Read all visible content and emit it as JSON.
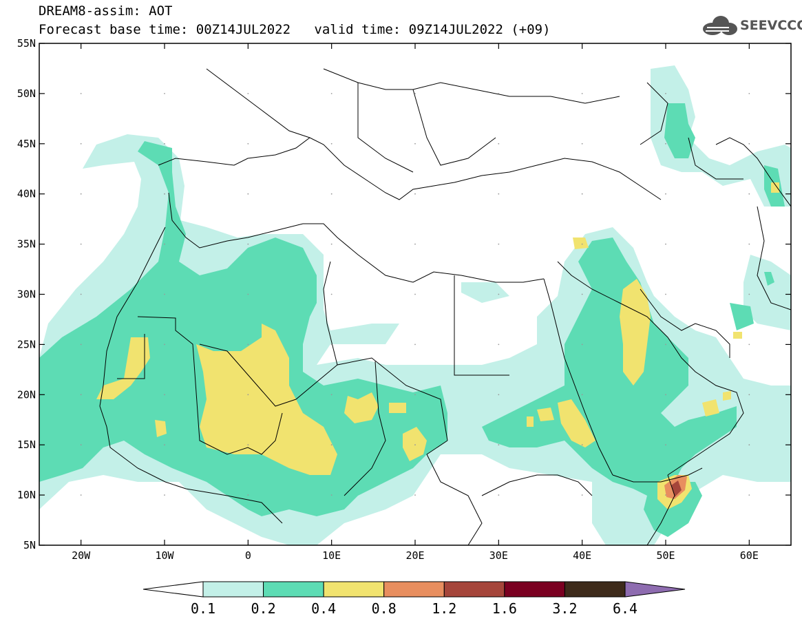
{
  "header": {
    "title_line1": "DREAM8-assim: AOT",
    "base_time_label": "Forecast base time: 00Z14JUL2022",
    "valid_time_label": "valid time: 09Z14JUL2022 (+09)"
  },
  "logo": {
    "text": "SEEVCCC",
    "icon": "cloud-icon"
  },
  "map": {
    "lon_range": [
      -25,
      65
    ],
    "lat_range": [
      5,
      55
    ],
    "lon_ticks": [
      "20W",
      "10W",
      "0",
      "10E",
      "20E",
      "30E",
      "40E",
      "50E",
      "60E"
    ],
    "lat_ticks": [
      "55N",
      "50N",
      "45N",
      "40N",
      "35N",
      "30N",
      "25N",
      "20N",
      "15N",
      "10N",
      "5N"
    ]
  },
  "colorbar": {
    "labels": [
      "0.1",
      "0.2",
      "0.4",
      "0.8",
      "1.2",
      "1.6",
      "3.2",
      "6.4"
    ],
    "colors": [
      "#ffffff",
      "#c3f0e8",
      "#5ddcb4",
      "#f1e36f",
      "#e88e5f",
      "#a5453a",
      "#7a0021",
      "#3d2a1a",
      "#8e6cb0"
    ]
  },
  "colors": {
    "frame": "#000000",
    "border": "#000000"
  }
}
